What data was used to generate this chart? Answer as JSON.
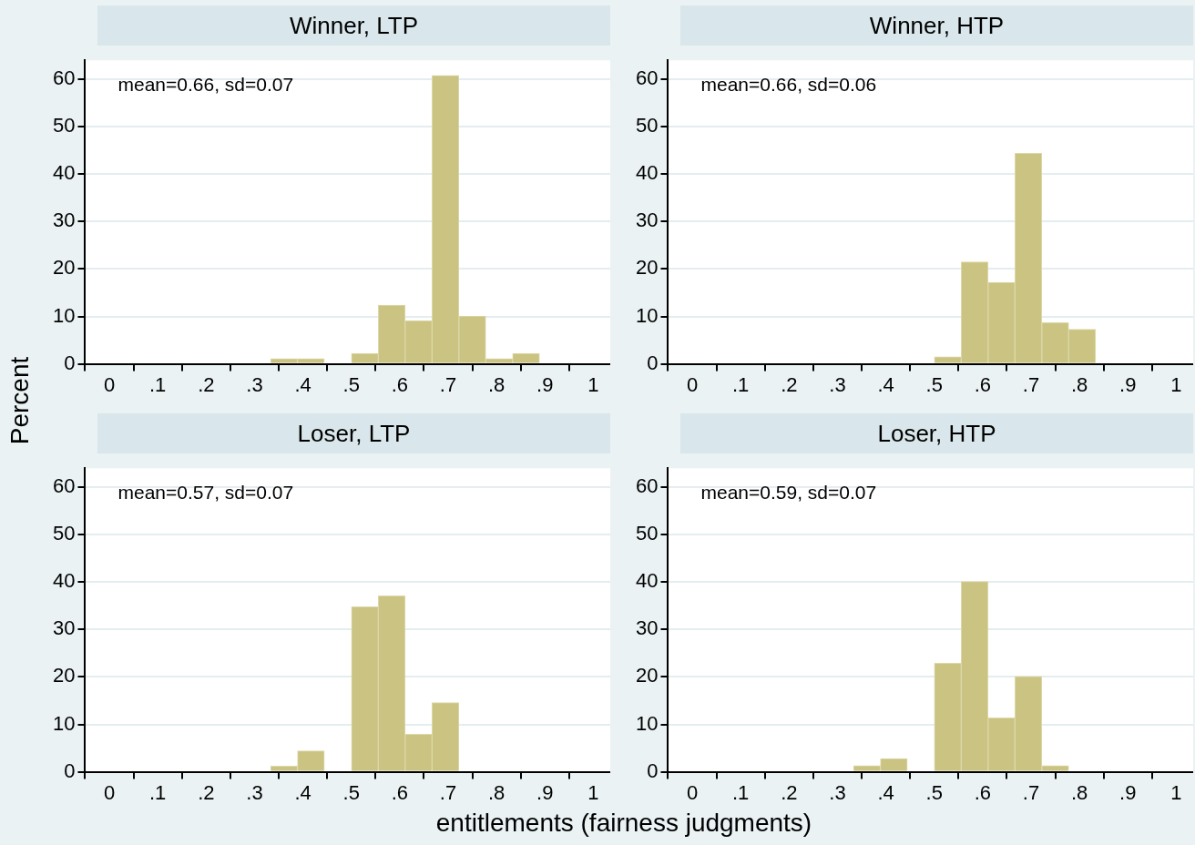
{
  "chart_data": [
    {
      "type": "histogram",
      "title": "Winner, LTP",
      "ylabel": "Percent",
      "annotations": [
        "mean=0.66, sd=0.07"
      ],
      "bins": [
        0.333,
        0.389,
        0.444,
        0.5,
        0.556,
        0.611,
        0.667,
        0.722,
        0.778,
        0.833,
        0.889
      ],
      "values": [
        1.1,
        1.1,
        0,
        2.2,
        12.4,
        9.1,
        60.8,
        10.1,
        1.1,
        2.2
      ],
      "color": "#cbc382",
      "xlim": [
        -0.05,
        1.035
      ],
      "ylim": [
        0,
        64
      ],
      "xticks": [
        {
          "value": 0,
          "label": "0"
        },
        {
          "value": 0.1,
          "label": ".1"
        },
        {
          "value": 0.2,
          "label": ".2"
        },
        {
          "value": 0.3,
          "label": ".3"
        },
        {
          "value": 0.4,
          "label": ".4"
        },
        {
          "value": 0.5,
          "label": ".5"
        },
        {
          "value": 0.6,
          "label": ".6"
        },
        {
          "value": 0.7,
          "label": ".7"
        },
        {
          "value": 0.8,
          "label": ".8"
        },
        {
          "value": 0.9,
          "label": ".9"
        },
        {
          "value": 1,
          "label": "1"
        }
      ],
      "yticks": [
        0,
        10,
        20,
        30,
        40,
        50,
        60
      ],
      "grid": "y"
    },
    {
      "type": "histogram",
      "title": "Winner, HTP",
      "annotations": [
        "mean=0.66, sd=0.06"
      ],
      "bins": [
        0.5,
        0.556,
        0.611,
        0.667,
        0.722,
        0.778,
        0.833
      ],
      "values": [
        1.5,
        21.5,
        17.2,
        44.4,
        8.7,
        7.3
      ],
      "color": "#cbc382",
      "xlim": [
        -0.05,
        1.035
      ],
      "ylim": [
        0,
        64
      ],
      "xticks": [
        {
          "value": 0,
          "label": "0"
        },
        {
          "value": 0.1,
          "label": ".1"
        },
        {
          "value": 0.2,
          "label": ".2"
        },
        {
          "value": 0.3,
          "label": ".3"
        },
        {
          "value": 0.4,
          "label": ".4"
        },
        {
          "value": 0.5,
          "label": ".5"
        },
        {
          "value": 0.6,
          "label": ".6"
        },
        {
          "value": 0.7,
          "label": ".7"
        },
        {
          "value": 0.8,
          "label": ".8"
        },
        {
          "value": 0.9,
          "label": ".9"
        },
        {
          "value": 1,
          "label": "1"
        }
      ],
      "yticks": [
        0,
        10,
        20,
        30,
        40,
        50,
        60
      ],
      "grid": "y"
    },
    {
      "type": "histogram",
      "title": "Loser, LTP",
      "xlabel": "entitlements (fairness judgments)",
      "annotations": [
        "mean=0.57, sd=0.07"
      ],
      "bins": [
        0.333,
        0.389,
        0.444,
        0.5,
        0.556,
        0.611,
        0.667,
        0.722
      ],
      "values": [
        1.2,
        4.4,
        0,
        34.8,
        37.1,
        7.9,
        14.6
      ],
      "color": "#cbc382",
      "xlim": [
        -0.05,
        1.035
      ],
      "ylim": [
        0,
        64
      ],
      "xticks": [
        {
          "value": 0,
          "label": "0"
        },
        {
          "value": 0.1,
          "label": ".1"
        },
        {
          "value": 0.2,
          "label": ".2"
        },
        {
          "value": 0.3,
          "label": ".3"
        },
        {
          "value": 0.4,
          "label": ".4"
        },
        {
          "value": 0.5,
          "label": ".5"
        },
        {
          "value": 0.6,
          "label": ".6"
        },
        {
          "value": 0.7,
          "label": ".7"
        },
        {
          "value": 0.8,
          "label": ".8"
        },
        {
          "value": 0.9,
          "label": ".9"
        },
        {
          "value": 1,
          "label": "1"
        }
      ],
      "yticks": [
        0,
        10,
        20,
        30,
        40,
        50,
        60
      ],
      "grid": "y"
    },
    {
      "type": "histogram",
      "title": "Loser, HTP",
      "annotations": [
        "mean=0.59, sd=0.07"
      ],
      "bins": [
        0.333,
        0.389,
        0.444,
        0.5,
        0.556,
        0.611,
        0.667,
        0.722,
        0.778
      ],
      "values": [
        1.3,
        2.8,
        0,
        22.9,
        40.1,
        11.4,
        20.1,
        1.3
      ],
      "color": "#cbc382",
      "xlim": [
        -0.05,
        1.035
      ],
      "ylim": [
        0,
        64
      ],
      "xticks": [
        {
          "value": 0,
          "label": "0"
        },
        {
          "value": 0.1,
          "label": ".1"
        },
        {
          "value": 0.2,
          "label": ".2"
        },
        {
          "value": 0.3,
          "label": ".3"
        },
        {
          "value": 0.4,
          "label": ".4"
        },
        {
          "value": 0.5,
          "label": ".5"
        },
        {
          "value": 0.6,
          "label": ".6"
        },
        {
          "value": 0.7,
          "label": ".7"
        },
        {
          "value": 0.8,
          "label": ".8"
        },
        {
          "value": 0.9,
          "label": ".9"
        },
        {
          "value": 1,
          "label": "1"
        }
      ],
      "yticks": [
        0,
        10,
        20,
        30,
        40,
        50,
        60
      ],
      "grid": "y"
    }
  ]
}
